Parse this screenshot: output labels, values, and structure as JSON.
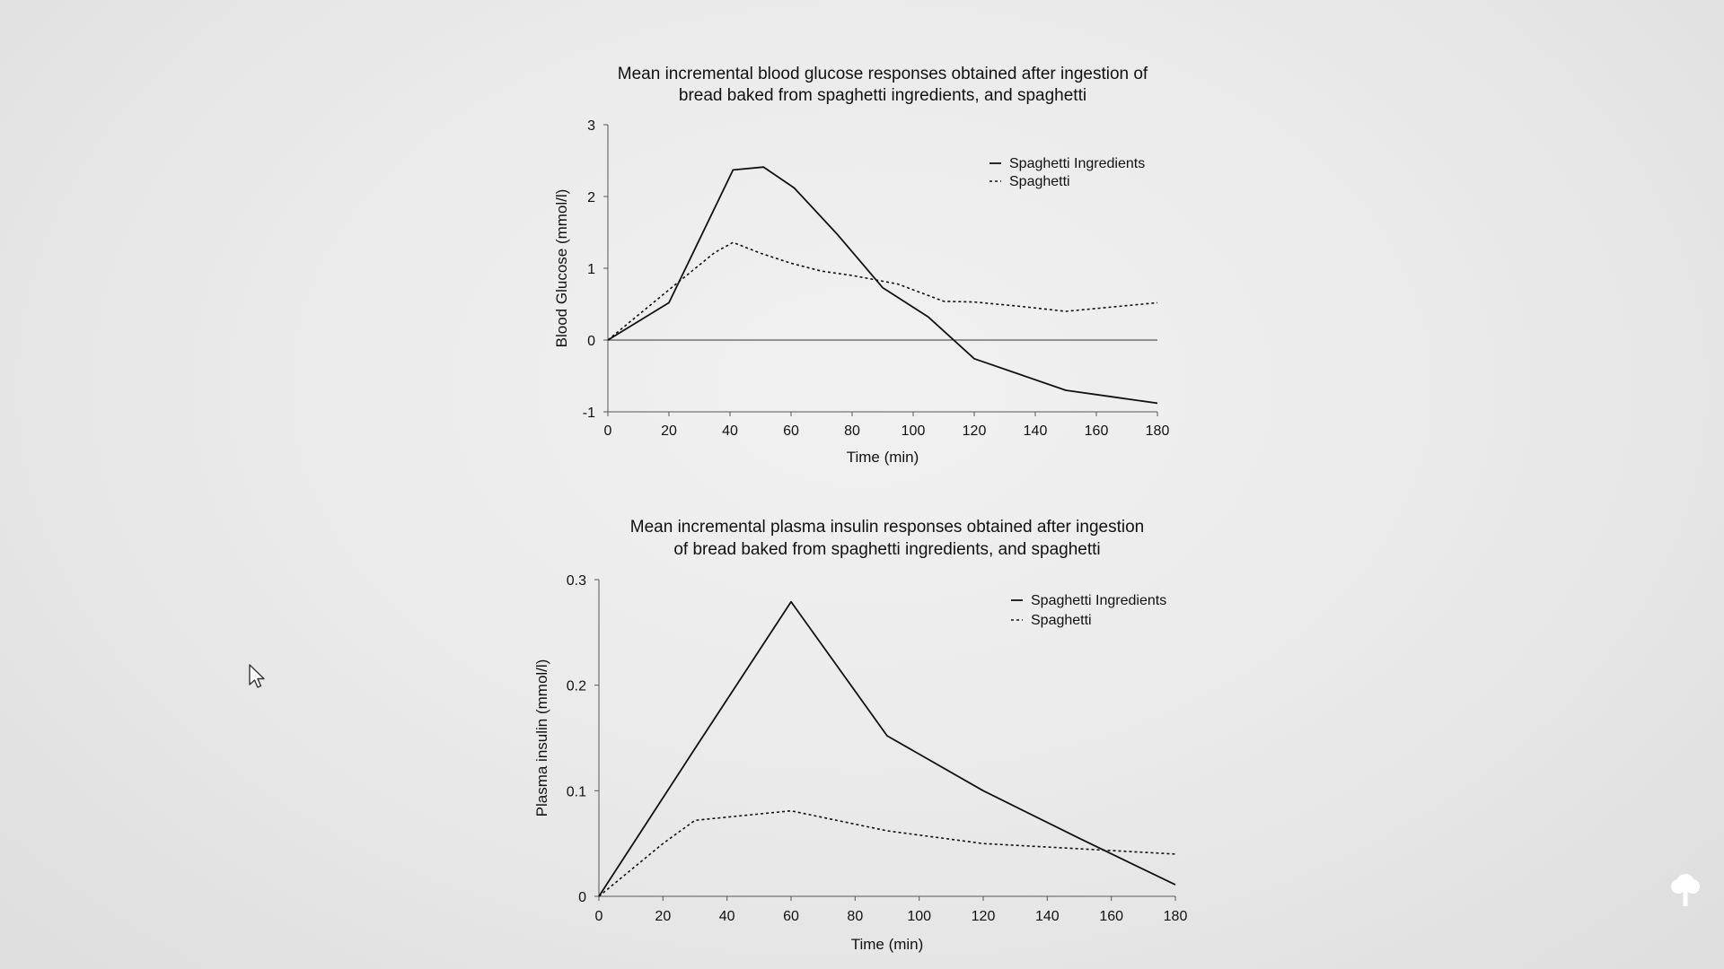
{
  "chart_data": [
    {
      "type": "line",
      "title_lines": [
        "Mean incremental blood glucose responses obtained after ingestion of",
        "bread baked from spaghetti ingredients, and spaghetti"
      ],
      "xlabel": "Time (min)",
      "ylabel": "Blood Glucose (mmol/l)",
      "xlim": [
        0,
        180
      ],
      "ylim": [
        -1,
        3
      ],
      "xticks": [
        "0",
        "20",
        "40",
        "60",
        "80",
        "100",
        "120",
        "140",
        "160",
        "180"
      ],
      "yticks": [
        "-1",
        "0",
        "1",
        "2",
        "3"
      ],
      "zero_line": true,
      "legend_position": "top-right",
      "series": [
        {
          "name": "Spaghetti Ingredients",
          "style": "solid",
          "x": [
            0,
            20,
            41,
            51,
            61,
            75,
            90,
            105,
            120,
            135,
            150,
            165,
            180
          ],
          "y": [
            0,
            0.52,
            2.37,
            2.41,
            2.12,
            1.48,
            0.73,
            0.32,
            -0.26,
            -0.48,
            -0.7,
            -0.79,
            -0.88
          ]
        },
        {
          "name": "Spaghetti",
          "style": "dotted",
          "x": [
            0,
            20,
            35,
            41,
            50,
            60,
            70,
            80,
            95,
            105,
            110,
            120,
            135,
            150,
            165,
            180
          ],
          "y": [
            0,
            0.7,
            1.22,
            1.36,
            1.21,
            1.07,
            0.96,
            0.9,
            0.78,
            0.62,
            0.54,
            0.53,
            0.47,
            0.4,
            0.46,
            0.52
          ]
        }
      ]
    },
    {
      "type": "line",
      "title_lines": [
        "Mean incremental plasma insulin responses obtained after ingestion",
        "of bread baked from spaghetti ingredients, and spaghetti"
      ],
      "xlabel": "Time (min)",
      "ylabel": "Plasma insulin (mmol/l)",
      "xlim": [
        0,
        180
      ],
      "ylim": [
        0,
        0.3
      ],
      "xticks": [
        "0",
        "20",
        "40",
        "60",
        "80",
        "100",
        "120",
        "140",
        "160",
        "180"
      ],
      "yticks": [
        "0",
        "0.1",
        "0.2",
        "0.3"
      ],
      "zero_line": false,
      "legend_position": "top-right",
      "series": [
        {
          "name": "Spaghetti Ingredients",
          "style": "solid",
          "x": [
            0,
            30,
            60,
            90,
            120,
            150,
            180
          ],
          "y": [
            0,
            0.14,
            0.279,
            0.152,
            0.1,
            0.055,
            0.011
          ]
        },
        {
          "name": "Spaghetti",
          "style": "dotted",
          "x": [
            0,
            20,
            30,
            60,
            90,
            120,
            150,
            180
          ],
          "y": [
            0,
            0.05,
            0.072,
            0.081,
            0.062,
            0.05,
            0.045,
            0.04
          ]
        }
      ]
    }
  ],
  "icons": {
    "cursor": "mouse-pointer-icon",
    "corner": "tree-icon"
  }
}
